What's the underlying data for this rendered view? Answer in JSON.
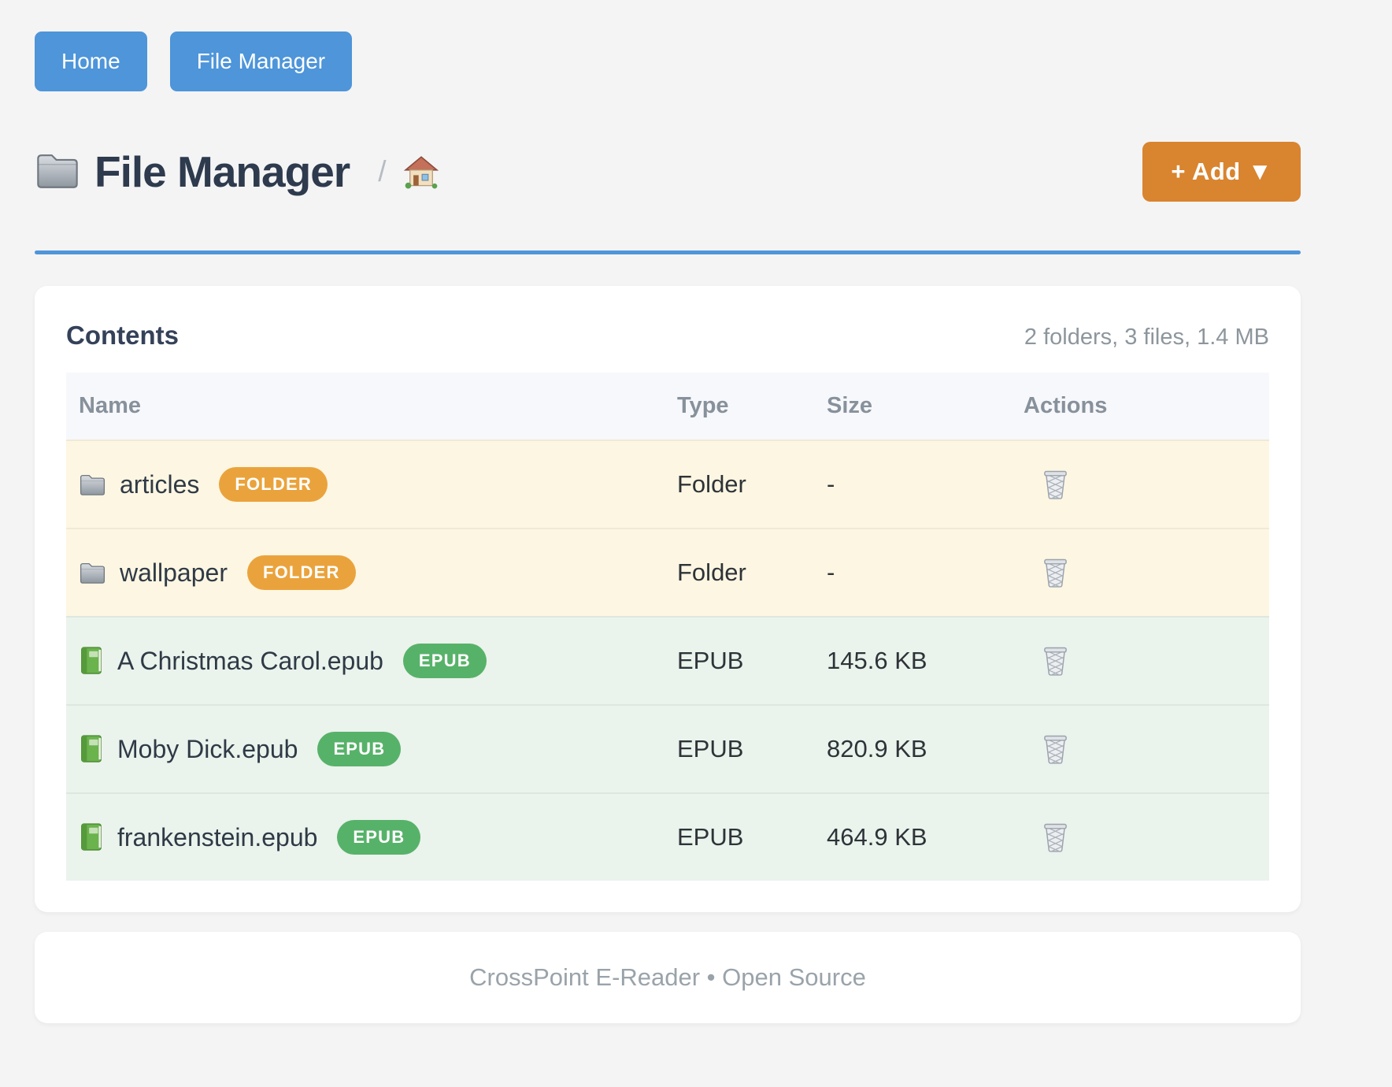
{
  "nav": {
    "buttons": [
      {
        "label": "Home"
      },
      {
        "label": "File Manager"
      }
    ]
  },
  "header": {
    "title": "File Manager",
    "breadcrumb_separator": "/",
    "add_button_label": "+ Add ▼"
  },
  "contents": {
    "title": "Contents",
    "summary": "2 folders, 3 files, 1.4 MB",
    "table": {
      "columns": [
        "Name",
        "Type",
        "Size",
        "Actions"
      ],
      "rows": [
        {
          "name": "articles",
          "badge": "FOLDER",
          "type": "Folder",
          "size": "-",
          "kind": "folder"
        },
        {
          "name": "wallpaper",
          "badge": "FOLDER",
          "type": "Folder",
          "size": "-",
          "kind": "folder"
        },
        {
          "name": "A Christmas Carol.epub",
          "badge": "EPUB",
          "type": "EPUB",
          "size": "145.6 KB",
          "kind": "epub"
        },
        {
          "name": "Moby Dick.epub",
          "badge": "EPUB",
          "type": "EPUB",
          "size": "820.9 KB",
          "kind": "epub"
        },
        {
          "name": "frankenstein.epub",
          "badge": "EPUB",
          "type": "EPUB",
          "size": "464.9 KB",
          "kind": "epub"
        }
      ]
    }
  },
  "footer": {
    "text": "CrossPoint E-Reader • Open Source"
  },
  "colors": {
    "accent_blue": "#4e95d9",
    "accent_orange": "#d9842f",
    "badge_folder": "#eaa33c",
    "badge_epub": "#57b269",
    "row_folder_bg": "#fdf6e2",
    "row_epub_bg": "#eaf3ec"
  },
  "icons": {
    "page_icon": "folder-icon",
    "breadcrumb_icon": "home-icon",
    "folder_row_icon": "folder-icon",
    "epub_row_icon": "book-icon",
    "delete_icon": "trash-icon"
  }
}
